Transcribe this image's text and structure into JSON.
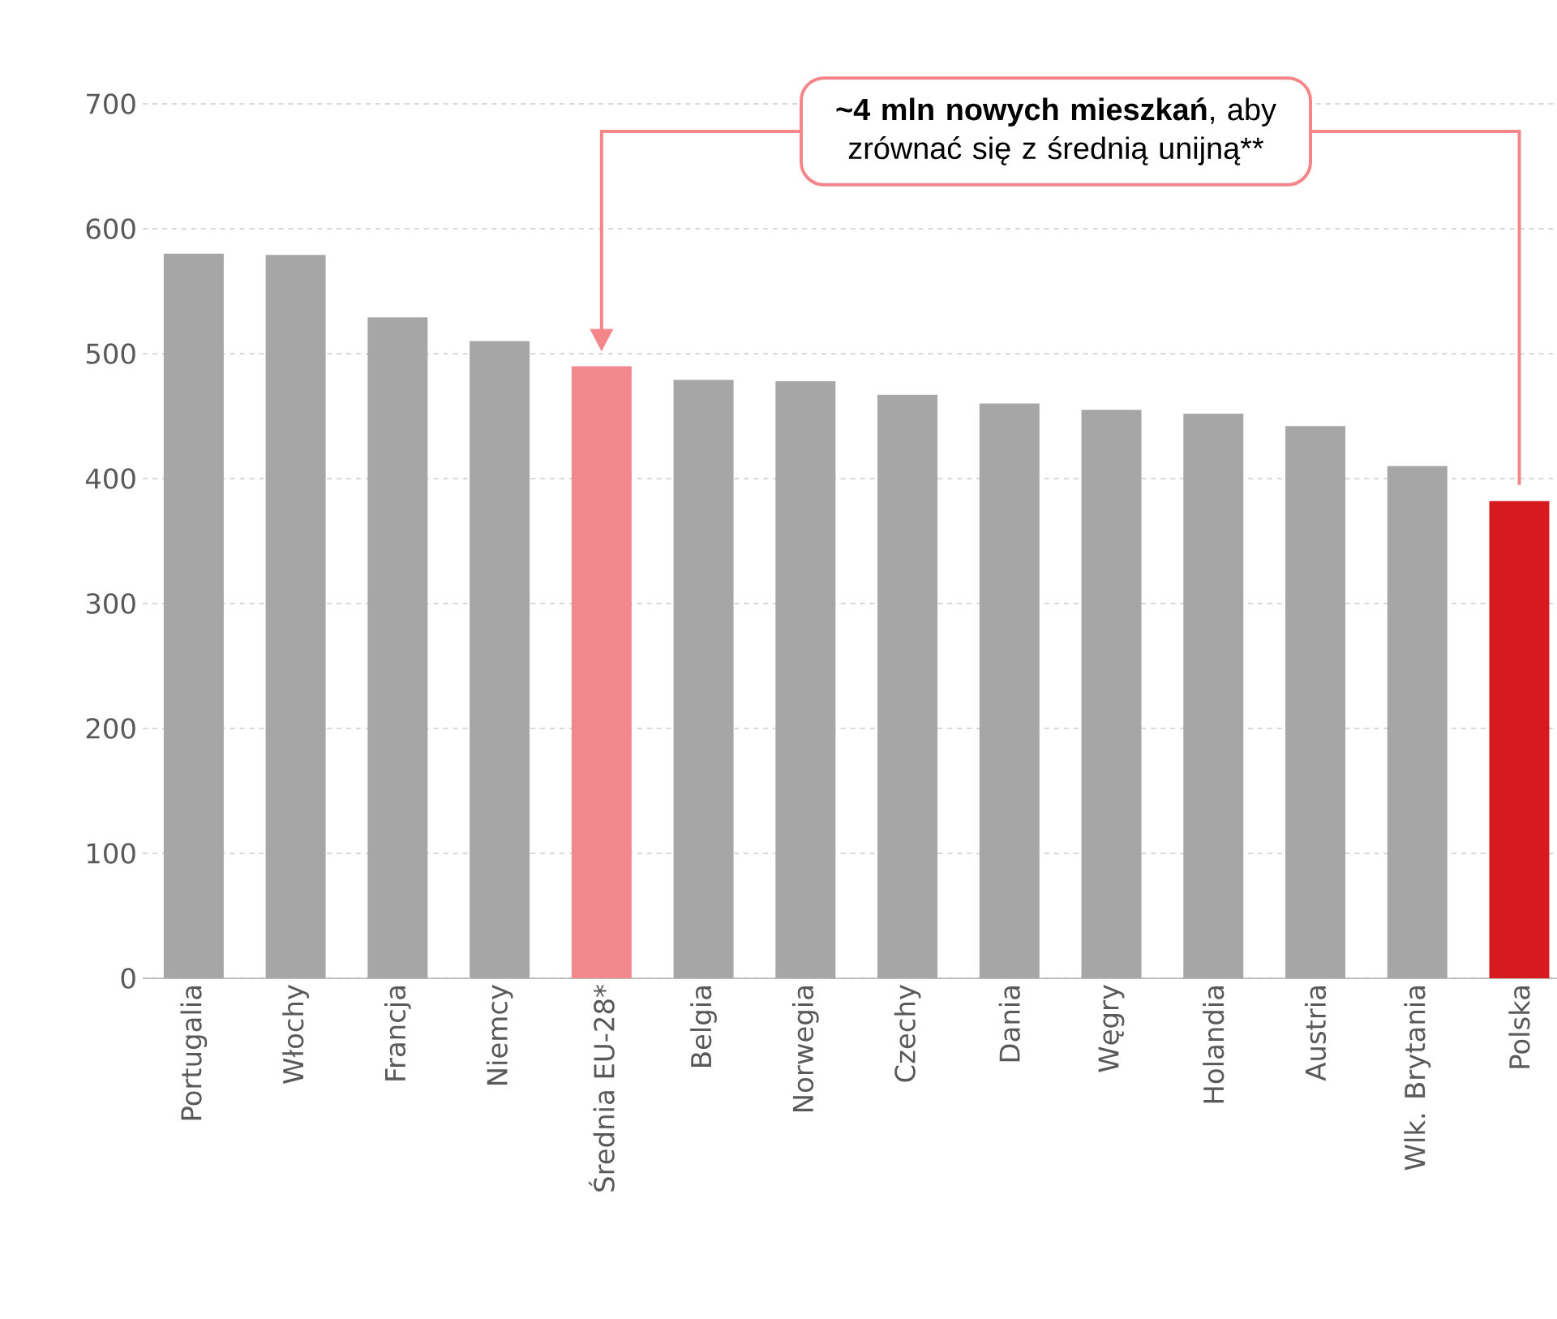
{
  "chart_data": {
    "type": "bar",
    "categories": [
      "Portugalia",
      "Włochy",
      "Francja",
      "Niemcy",
      "Średnia EU-28*",
      "Belgia",
      "Norwegia",
      "Czechy",
      "Dania",
      "Węgry",
      "Holandia",
      "Austria",
      "Wlk. Brytania",
      "Polska"
    ],
    "values": [
      580,
      579,
      529,
      510,
      490,
      479,
      478,
      467,
      460,
      455,
      452,
      442,
      410,
      382
    ],
    "colors": [
      "#a6a6a6",
      "#a6a6a6",
      "#a6a6a6",
      "#a6a6a6",
      "#f0888c",
      "#a6a6a6",
      "#a6a6a6",
      "#a6a6a6",
      "#a6a6a6",
      "#a6a6a6",
      "#a6a6a6",
      "#a6a6a6",
      "#a6a6a6",
      "#d71920"
    ],
    "ylim": [
      0,
      700
    ],
    "yticks": [
      0,
      100,
      200,
      300,
      400,
      500,
      600,
      700
    ],
    "grid": "y",
    "annotations": [
      "**~4 mln nowych mieszkań**, aby zrównać się z średnią unijną**"
    ]
  }
}
